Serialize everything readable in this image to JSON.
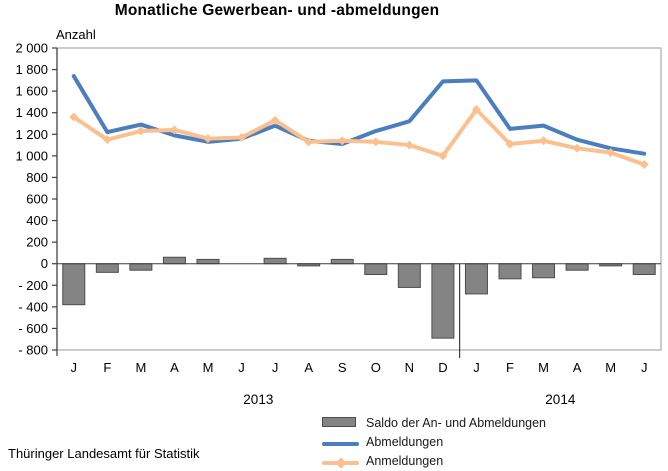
{
  "footer": {
    "source": "Thüringer Landesamt für Statistik"
  },
  "chart_data": {
    "type": "combo",
    "title": "Monatliche Gewerbean- und -abmeldungen",
    "ylabel": "Anzahl",
    "xlabel": "",
    "categories": [
      "J",
      "F",
      "M",
      "A",
      "M",
      "J",
      "J",
      "A",
      "S",
      "O",
      "N",
      "D",
      "J",
      "F",
      "M",
      "A",
      "M",
      "J"
    ],
    "year_groups": [
      {
        "label": "2013",
        "count": 12
      },
      {
        "label": "2014",
        "count": 6
      }
    ],
    "ylim": [
      -800,
      2000
    ],
    "ytick_step": 200,
    "ytick_labels": [
      "2 000",
      "1 800",
      "1 600",
      "1 400",
      "1 200",
      "1 000",
      "800",
      "600",
      "400",
      "200",
      "0",
      "- 200",
      "- 400",
      "- 600",
      "- 800"
    ],
    "grid": "off",
    "legend_position": "bottom-right",
    "series": [
      {
        "name": "Saldo der An- und Abmeldungen",
        "slug": "saldo",
        "type": "bar",
        "color": "#848484",
        "border": "#4d4d4d",
        "values": [
          -380,
          -80,
          -60,
          60,
          40,
          0,
          50,
          -20,
          40,
          -100,
          -220,
          -690,
          -280,
          -140,
          -130,
          -60,
          -20,
          -100
        ]
      },
      {
        "name": "Abmeldungen",
        "slug": "abmeldungen",
        "type": "line",
        "color": "#4a7ebd",
        "values": [
          1740,
          1220,
          1290,
          1190,
          1130,
          1160,
          1280,
          1140,
          1110,
          1230,
          1320,
          1690,
          1700,
          1250,
          1280,
          1150,
          1070,
          1020
        ]
      },
      {
        "name": "Anmeldungen",
        "slug": "anmeldungen",
        "type": "line",
        "marker": "diamond",
        "color": "#FAC090",
        "values": [
          1360,
          1150,
          1230,
          1240,
          1160,
          1170,
          1330,
          1130,
          1140,
          1130,
          1100,
          1000,
          1430,
          1110,
          1140,
          1070,
          1030,
          920
        ]
      }
    ]
  }
}
